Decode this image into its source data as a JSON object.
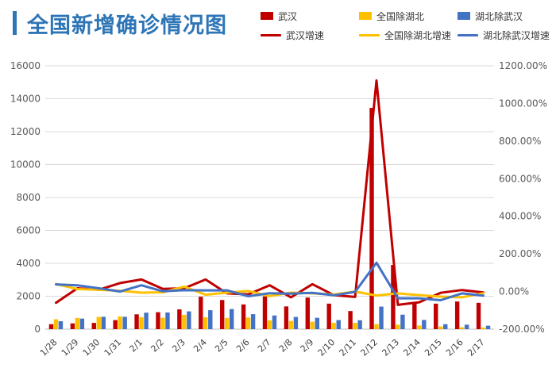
{
  "title": "全国新增确诊情况图",
  "legend": [
    {
      "label": "武汉",
      "color": "#c00000",
      "kind": "bar"
    },
    {
      "label": "全国除湖北",
      "color": "#ffc000",
      "kind": "bar"
    },
    {
      "label": "湖北除武汉",
      "color": "#4472c4",
      "kind": "bar"
    },
    {
      "label": "武汉增速",
      "color": "#c00000",
      "kind": "line"
    },
    {
      "label": "全国除湖北增速",
      "color": "#ffc000",
      "kind": "line"
    },
    {
      "label": "湖北除武汉增速",
      "color": "#4472c4",
      "kind": "line"
    }
  ],
  "chart_data": {
    "type": "bar",
    "title": "全国新增确诊情况图",
    "categories": [
      "1/28",
      "1/29",
      "1/30",
      "1/31",
      "2/1",
      "2/2",
      "2/3",
      "2/4",
      "2/5",
      "2/6",
      "2/7",
      "2/8",
      "2/9",
      "2/10",
      "2/11",
      "2/12",
      "2/13",
      "2/14",
      "2/15",
      "2/16",
      "2/17"
    ],
    "series": [
      {
        "name": "武汉",
        "type": "bar",
        "axis": "left",
        "color": "#c00000",
        "values": [
          300,
          350,
          380,
          550,
          900,
          1030,
          1200,
          1970,
          1770,
          1500,
          1990,
          1380,
          1920,
          1550,
          1100,
          13440,
          3900,
          1660,
          1550,
          1680,
          1600
        ]
      },
      {
        "name": "全国除湖北",
        "type": "bar",
        "axis": "left",
        "color": "#ffc000",
        "values": [
          600,
          680,
          740,
          770,
          720,
          690,
          870,
          720,
          680,
          700,
          530,
          500,
          450,
          380,
          380,
          300,
          270,
          220,
          160,
          110,
          100
        ]
      },
      {
        "name": "湖北除武汉",
        "type": "bar",
        "axis": "left",
        "color": "#4472c4",
        "values": [
          480,
          640,
          750,
          750,
          1000,
          1010,
          1080,
          1150,
          1220,
          910,
          830,
          740,
          690,
          550,
          540,
          1370,
          880,
          560,
          300,
          270,
          210
        ]
      },
      {
        "name": "武汉增速",
        "type": "line",
        "axis": "right",
        "color": "#c00000",
        "values": [
          -60,
          17,
          9,
          45,
          64,
          14,
          17,
          64,
          -10,
          -15,
          33,
          -31,
          39,
          -19,
          -29,
          1122,
          -71,
          -57,
          -7,
          8,
          -5
        ]
      },
      {
        "name": "全国除湖北增速",
        "type": "line",
        "axis": "right",
        "color": "#ffc000",
        "values": [
          40,
          13,
          9,
          4,
          -6,
          -4,
          26,
          -17,
          -6,
          3,
          -24,
          -6,
          -10,
          -16,
          0,
          -21,
          -10,
          -19,
          -27,
          -31,
          -9
        ]
      },
      {
        "name": "湖北除武汉增速",
        "type": "line",
        "axis": "right",
        "color": "#4472c4",
        "values": [
          38,
          33,
          17,
          0,
          33,
          1,
          7,
          6,
          6,
          -25,
          -9,
          -11,
          -7,
          -20,
          -2,
          153,
          -36,
          -36,
          -46,
          -10,
          -22
        ]
      }
    ],
    "y_left": {
      "range": [
        0,
        16000
      ],
      "ticks": [
        "0",
        "2000",
        "4000",
        "6000",
        "8000",
        "10000",
        "12000",
        "14000",
        "16000"
      ]
    },
    "y_right": {
      "range": [
        -200,
        1200
      ],
      "ticks": [
        "-200.00%",
        "0.00%",
        "200.00%",
        "400.00%",
        "600.00%",
        "800.00%",
        "1000.00%",
        "1200.00%"
      ]
    },
    "grid": true,
    "legend_position": "top-right"
  }
}
